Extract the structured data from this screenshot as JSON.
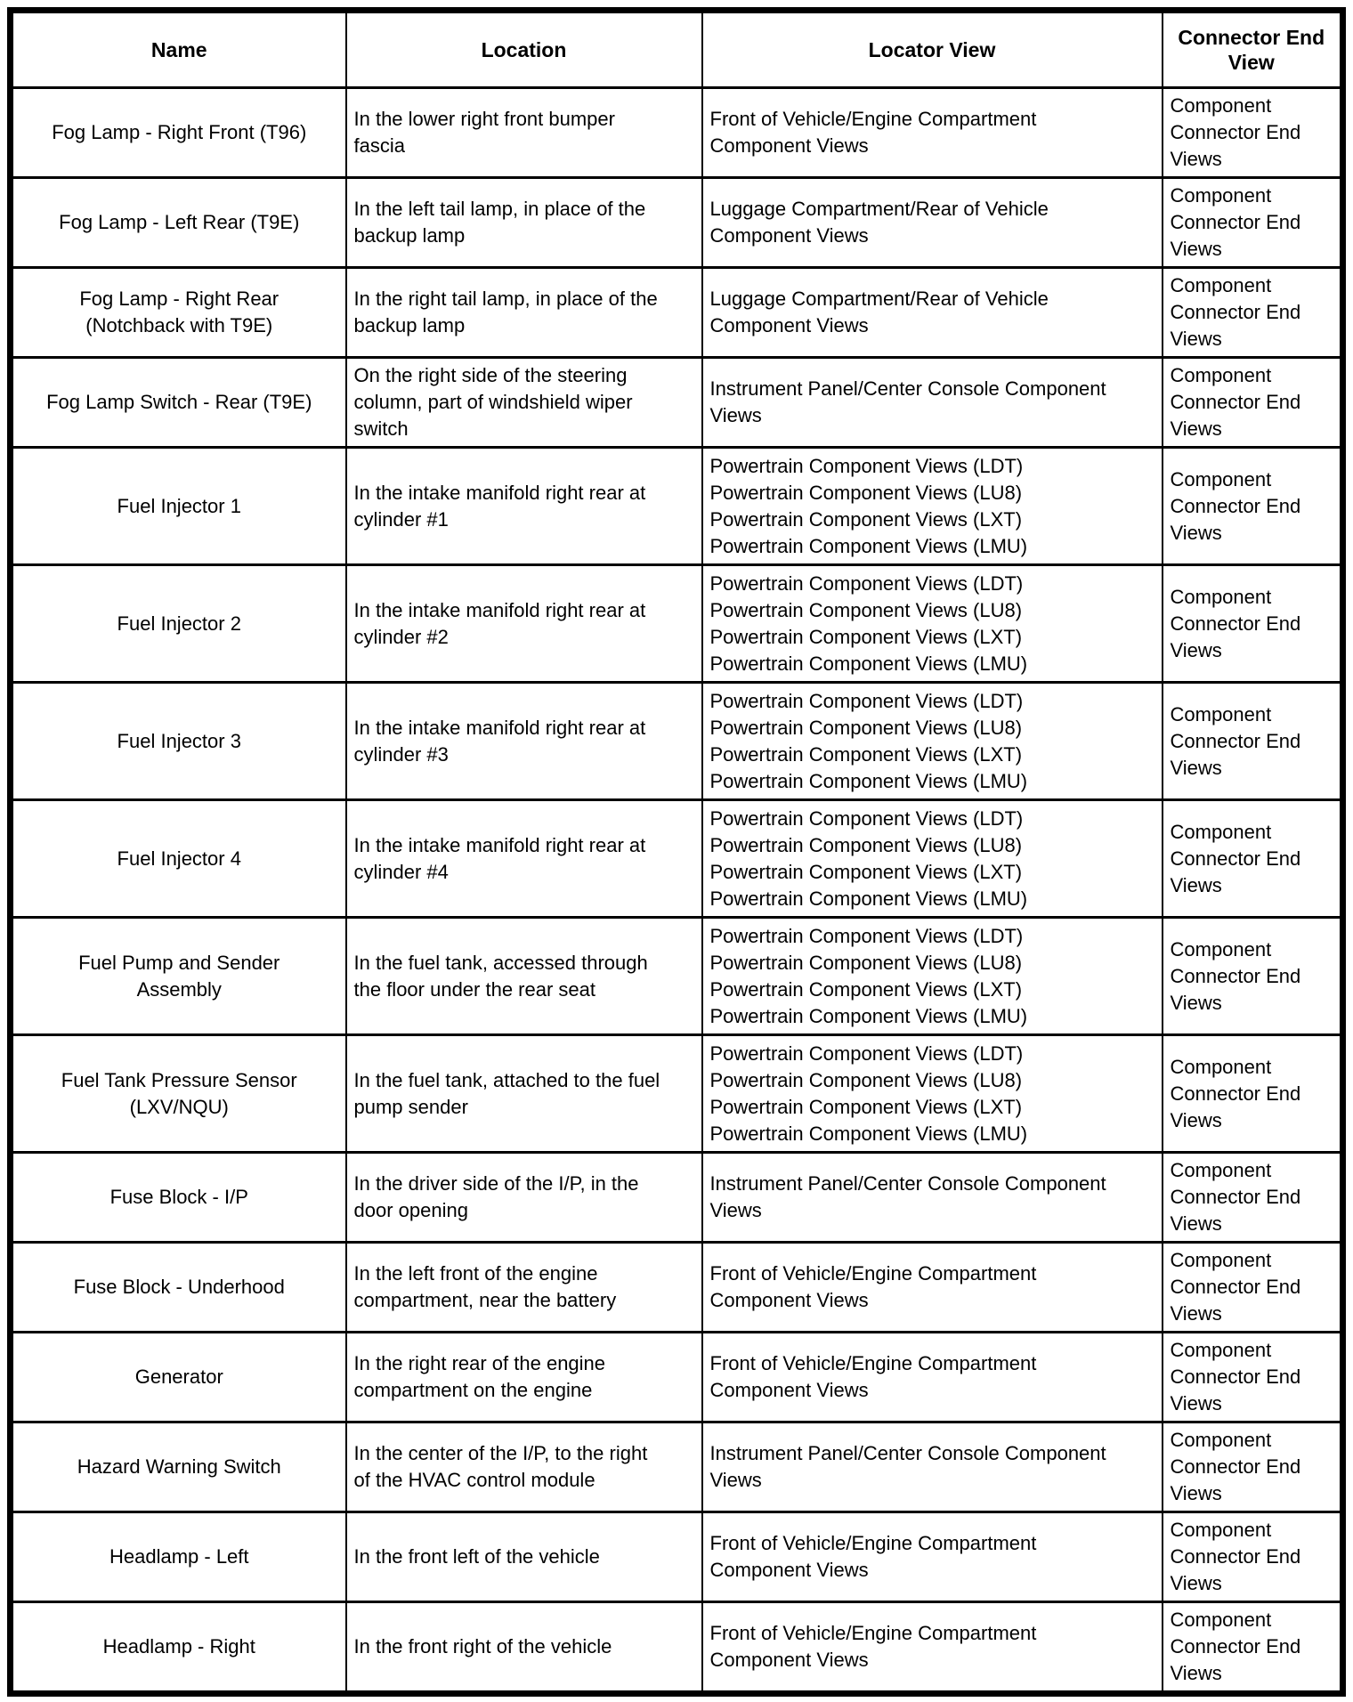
{
  "header": {
    "columns": [
      "Name",
      "Location",
      "Locator View",
      "Connector End\nView"
    ]
  },
  "rows": [
    {
      "name": "Fog Lamp - Right Front (T96)",
      "location": "In the lower right front bumper\nfascia",
      "locator_views": [
        "Front of Vehicle/Engine Compartment\nComponent Views"
      ],
      "connector_end_view": "Component\nConnector End\nViews"
    },
    {
      "name": "Fog Lamp - Left Rear (T9E)",
      "location": "In the left tail lamp, in place of the\nbackup lamp",
      "locator_views": [
        "Luggage Compartment/Rear of Vehicle\nComponent Views"
      ],
      "connector_end_view": "Component\nConnector End\nViews"
    },
    {
      "name": "Fog Lamp - Right Rear\n(Notchback with T9E)",
      "location": "In the right tail lamp, in place of the\nbackup lamp",
      "locator_views": [
        "Luggage Compartment/Rear of Vehicle\nComponent Views"
      ],
      "connector_end_view": "Component\nConnector End\nViews"
    },
    {
      "name": "Fog Lamp Switch - Rear (T9E)",
      "location": "On the right side of the steering\ncolumn, part of windshield wiper\nswitch",
      "locator_views": [
        "Instrument Panel/Center Console Component\nViews"
      ],
      "connector_end_view": "Component\nConnector End\nViews"
    },
    {
      "name": "Fuel Injector 1",
      "location": "In the intake manifold right rear at\ncylinder #1",
      "locator_views": [
        "Powertrain Component Views (LDT)",
        "Powertrain Component Views (LU8)",
        "Powertrain Component Views (LXT)",
        "Powertrain Component Views (LMU)"
      ],
      "connector_end_view": "Component\nConnector End\nViews"
    },
    {
      "name": "Fuel Injector 2",
      "location": "In the intake manifold right rear at\ncylinder #2",
      "locator_views": [
        "Powertrain Component Views (LDT)",
        "Powertrain Component Views (LU8)",
        "Powertrain Component Views (LXT)",
        "Powertrain Component Views (LMU)"
      ],
      "connector_end_view": "Component\nConnector End\nViews"
    },
    {
      "name": "Fuel Injector 3",
      "location": "In the intake manifold right rear at\ncylinder #3",
      "locator_views": [
        "Powertrain Component Views (LDT)",
        "Powertrain Component Views (LU8)",
        "Powertrain Component Views (LXT)",
        "Powertrain Component Views (LMU)"
      ],
      "connector_end_view": "Component\nConnector End\nViews"
    },
    {
      "name": "Fuel Injector 4",
      "location": "In the intake manifold right rear at\ncylinder #4",
      "locator_views": [
        "Powertrain Component Views (LDT)",
        "Powertrain Component Views (LU8)",
        "Powertrain Component Views (LXT)",
        "Powertrain Component Views (LMU)"
      ],
      "connector_end_view": "Component\nConnector End\nViews"
    },
    {
      "name": "Fuel Pump and Sender\nAssembly",
      "location": "In the fuel tank, accessed through\nthe floor under the rear seat",
      "locator_views": [
        "Powertrain Component Views (LDT)",
        "Powertrain Component Views (LU8)",
        "Powertrain Component Views (LXT)",
        "Powertrain Component Views (LMU)"
      ],
      "connector_end_view": "Component\nConnector End\nViews"
    },
    {
      "name": "Fuel Tank Pressure Sensor\n(LXV/NQU)",
      "location": "In the fuel tank, attached to the fuel\npump sender",
      "locator_views": [
        "Powertrain Component Views (LDT)",
        "Powertrain Component Views (LU8)",
        "Powertrain Component Views (LXT)",
        "Powertrain Component Views (LMU)"
      ],
      "connector_end_view": "Component\nConnector End\nViews"
    },
    {
      "name": "Fuse Block - I/P",
      "location": "In the driver side of the I/P, in the\ndoor opening",
      "locator_views": [
        "Instrument Panel/Center Console Component\nViews"
      ],
      "connector_end_view": "Component\nConnector End\nViews"
    },
    {
      "name": "Fuse Block - Underhood",
      "location": "In the left front of the engine\ncompartment, near the battery",
      "locator_views": [
        "Front of Vehicle/Engine Compartment\nComponent Views"
      ],
      "connector_end_view": "Component\nConnector End\nViews"
    },
    {
      "name": "Generator",
      "location": "In the right rear of the engine\ncompartment on the engine",
      "locator_views": [
        "Front of Vehicle/Engine Compartment\nComponent Views"
      ],
      "connector_end_view": "Component\nConnector End\nViews"
    },
    {
      "name": "Hazard Warning Switch",
      "location": "In the center of the I/P, to the right\nof the HVAC control module",
      "locator_views": [
        "Instrument Panel/Center Console Component\nViews"
      ],
      "connector_end_view": "Component\nConnector End\nViews"
    },
    {
      "name": "Headlamp - Left",
      "location": "In the front left of the vehicle",
      "locator_views": [
        "Front of Vehicle/Engine Compartment\nComponent Views"
      ],
      "connector_end_view": "Component\nConnector End\nViews"
    },
    {
      "name": "Headlamp - Right",
      "location": "In the front right of the vehicle",
      "locator_views": [
        "Front of Vehicle/Engine Compartment\nComponent Views"
      ],
      "connector_end_view": "Component\nConnector End\nViews"
    }
  ]
}
